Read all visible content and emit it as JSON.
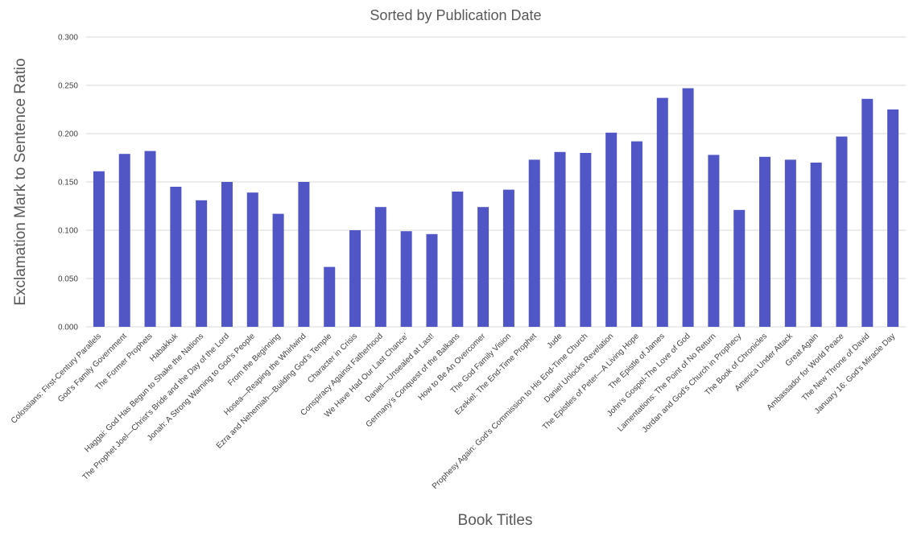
{
  "chart_data": {
    "type": "bar",
    "title": "Sorted by Publication Date",
    "xlabel": "Book Titles",
    "ylabel": "Exclamation Mark to Sentence Ratio",
    "ylim": [
      0,
      0.3
    ],
    "yticks": [
      "0.000",
      "0.050",
      "0.100",
      "0.150",
      "0.200",
      "0.250",
      "0.300"
    ],
    "grid": true,
    "bar_color": "#5056c6",
    "categories": [
      "Colossians: First-Century Parallels",
      "God’s Family Government",
      "The Former Prophets",
      "Habakkuk",
      "Haggai: God Has Begun to Shake the Nations",
      "The Prophet Joel—Christ’s Bride and the Day of the Lord",
      "Jonah: A Strong Warning to God’s People",
      "From the Beginning",
      "Hosea—Reaping the Whirlwind",
      "Ezra and Nehemiah—Building God’s Temple",
      "Character in Crisis",
      "Conspiracy Against Fatherhood",
      "We Have Had Our Last Chance’",
      "Daniel—Unsealed at Last!",
      "Germany’s Conquest of the Balkans",
      "How to Be An Overcomer",
      "The God Family Vision",
      "Ezekiel: The End-Time Prophet",
      "Jude",
      "Prophesy Again: God’s Commission to His End-Time Church",
      "Daniel Unlocks Revelation",
      "The Epistles of Peter—A Living Hope",
      "The Epistle of James",
      "John’s Gospel-The Love of God",
      "Lamentations: The Point of No Return",
      "Jordan and God’s Church in Prophecy",
      "The Book of Chronicles",
      "America Under Attack",
      "Great Again",
      "Ambassador for World Peace",
      "The New Throne of David",
      "January 16: God’s Miracle Day"
    ],
    "values": [
      0.161,
      0.179,
      0.182,
      0.145,
      0.131,
      0.15,
      0.139,
      0.117,
      0.15,
      0.062,
      0.1,
      0.124,
      0.099,
      0.096,
      0.14,
      0.124,
      0.142,
      0.173,
      0.181,
      0.18,
      0.201,
      0.192,
      0.237,
      0.247,
      0.178,
      0.121,
      0.176,
      0.173,
      0.17,
      0.197,
      0.236,
      0.225
    ]
  }
}
